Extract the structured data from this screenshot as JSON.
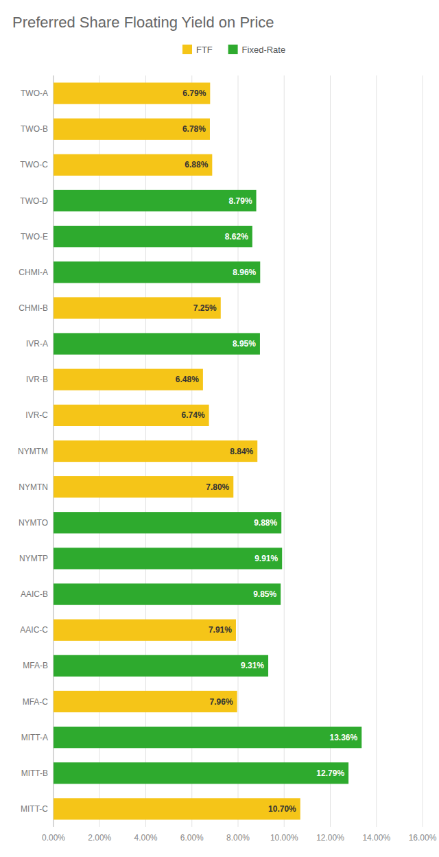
{
  "chart_data": {
    "type": "bar",
    "orientation": "horizontal",
    "stacked": true,
    "title": "Preferred Share Floating Yield on Price",
    "categories": [
      "TWO-A",
      "TWO-B",
      "TWO-C",
      "TWO-D",
      "TWO-E",
      "CHMI-A",
      "CHMI-B",
      "IVR-A",
      "IVR-B",
      "IVR-C",
      "NYMTM",
      "NYMTN",
      "NYMTO",
      "NYMTP",
      "AAIC-B",
      "AAIC-C",
      "MFA-B",
      "MFA-C",
      "MITT-A",
      "MITT-B",
      "MITT-C"
    ],
    "series": [
      {
        "name": "FTF",
        "color": "#F5C518",
        "values": [
          6.79,
          6.78,
          6.88,
          null,
          null,
          null,
          7.25,
          null,
          6.48,
          6.74,
          8.84,
          7.8,
          null,
          null,
          null,
          7.91,
          null,
          7.96,
          null,
          null,
          10.7
        ],
        "value_labels": [
          "6.79%",
          "6.78%",
          "6.88%",
          null,
          null,
          null,
          "7.25%",
          null,
          "6.48%",
          "6.74%",
          "8.84%",
          "7.80%",
          null,
          null,
          null,
          "7.91%",
          null,
          "7.96%",
          null,
          null,
          "10.70%"
        ]
      },
      {
        "name": "Fixed-Rate",
        "color": "#2EAA2E",
        "values": [
          null,
          null,
          null,
          8.79,
          8.62,
          8.96,
          null,
          8.95,
          null,
          null,
          null,
          null,
          9.88,
          9.91,
          9.85,
          null,
          9.31,
          null,
          13.36,
          12.79,
          null
        ],
        "value_labels": [
          null,
          null,
          null,
          "8.79%",
          "8.62%",
          "8.96%",
          null,
          "8.95%",
          null,
          null,
          null,
          null,
          "9.88%",
          "9.91%",
          "9.85%",
          null,
          "9.31%",
          null,
          "13.36%",
          "12.79%",
          null
        ]
      }
    ],
    "xlim": [
      0,
      16
    ],
    "xticks": [
      {
        "value": 0,
        "label": "0.00%"
      },
      {
        "value": 2,
        "label": "2.00%"
      },
      {
        "value": 4,
        "label": "4.00%"
      },
      {
        "value": 6,
        "label": "6.00%"
      },
      {
        "value": 8,
        "label": "8.00%"
      },
      {
        "value": 10,
        "label": "10.00%"
      },
      {
        "value": 12,
        "label": "12.00%"
      },
      {
        "value": 14,
        "label": "14.00%"
      },
      {
        "value": 16,
        "label": "16.00%"
      }
    ],
    "grid": true,
    "legend": "top",
    "data_labels": true
  }
}
